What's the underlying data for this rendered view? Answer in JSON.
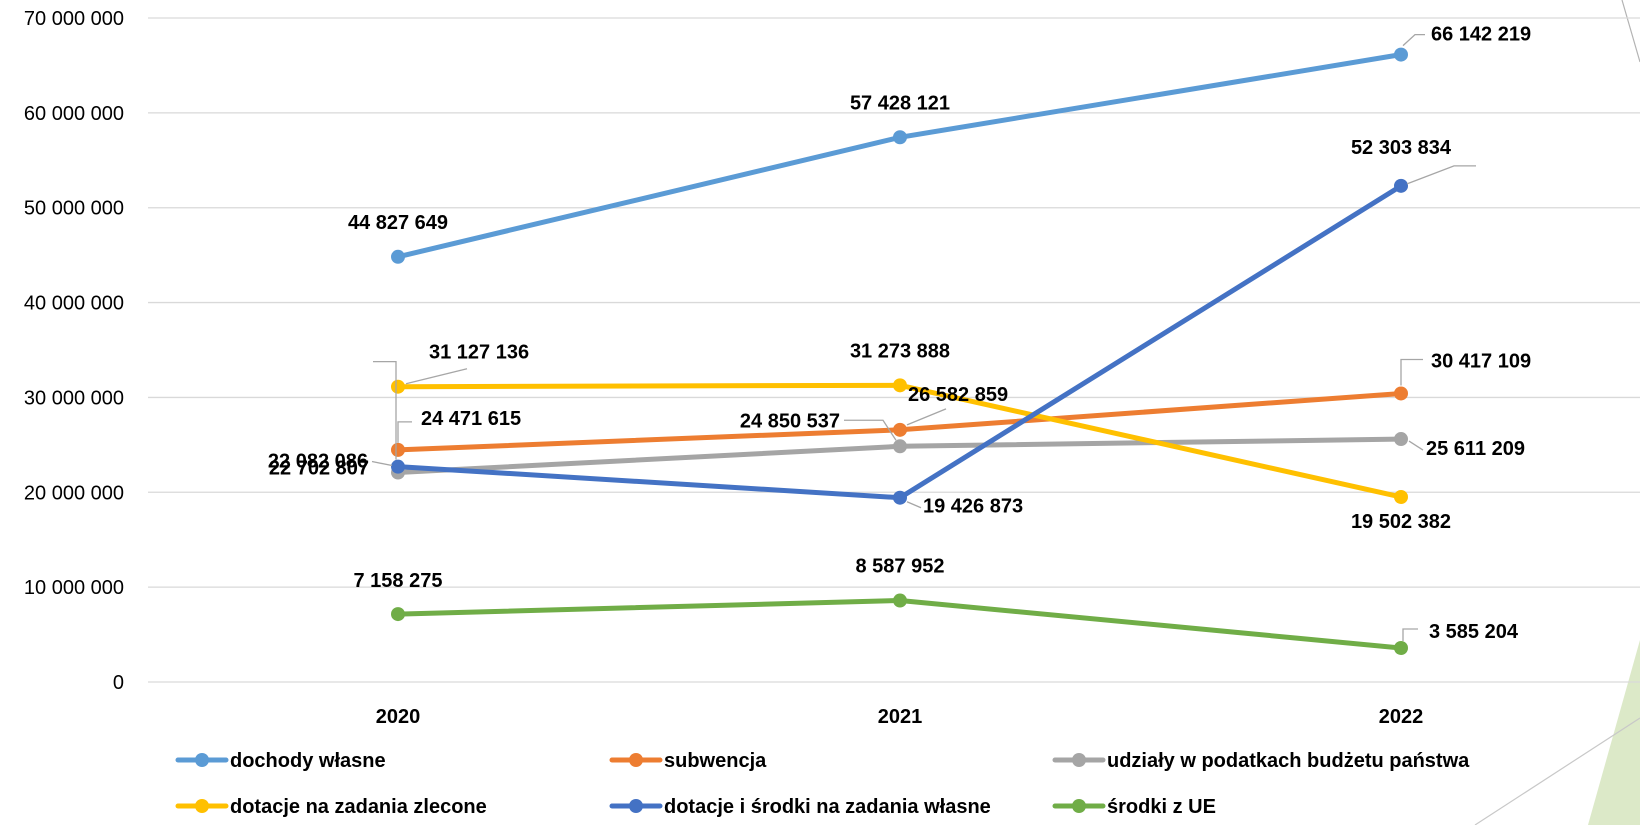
{
  "chart_data": {
    "type": "line",
    "title": "",
    "xlabel": "",
    "ylabel": "",
    "categories": [
      "2020",
      "2021",
      "2022"
    ],
    "ylim": [
      0,
      70000000
    ],
    "yticks": [
      0,
      10000000,
      20000000,
      30000000,
      40000000,
      50000000,
      60000000,
      70000000
    ],
    "ytick_labels": [
      "0",
      "10 000 000",
      "20 000 000",
      "30 000 000",
      "40 000 000",
      "50 000 000",
      "60 000 000",
      "70 000 000"
    ],
    "grid": true,
    "legend_position": "bottom",
    "series": [
      {
        "name": "dochody własne",
        "color": "#5B9BD5",
        "values": [
          44827649,
          57428121,
          66142219
        ],
        "labels": [
          "44 827 649",
          "57 428 121",
          "66 142 219"
        ]
      },
      {
        "name": "subwencja",
        "color": "#ED7D31",
        "values": [
          24471615,
          26582859,
          30417109
        ],
        "labels": [
          "24 471 615",
          "26 582 859",
          "30 417 109"
        ]
      },
      {
        "name": "udziały w podatkach budżetu państwa",
        "color": "#A5A5A5",
        "values": [
          22082086,
          24850537,
          25611209
        ],
        "labels": [
          "22 082 086",
          "24 850 537",
          "25 611 209"
        ]
      },
      {
        "name": "dotacje na zadania zlecone",
        "color": "#FFC000",
        "values": [
          31127136,
          31273888,
          19502382
        ],
        "labels": [
          "31 127 136",
          "31 273 888",
          "19 502 382"
        ]
      },
      {
        "name": "dotacje i środki na zadania własne",
        "color": "#4472C4",
        "values": [
          22702807,
          19426873,
          52303834
        ],
        "labels": [
          "22 702 807",
          "19 426 873",
          "52 303 834"
        ]
      },
      {
        "name": "środki z UE",
        "color": "#70AD47",
        "values": [
          7158275,
          8587952,
          3585204
        ],
        "labels": [
          "7 158 275",
          "8 587 952",
          "3 585 204"
        ]
      }
    ]
  }
}
